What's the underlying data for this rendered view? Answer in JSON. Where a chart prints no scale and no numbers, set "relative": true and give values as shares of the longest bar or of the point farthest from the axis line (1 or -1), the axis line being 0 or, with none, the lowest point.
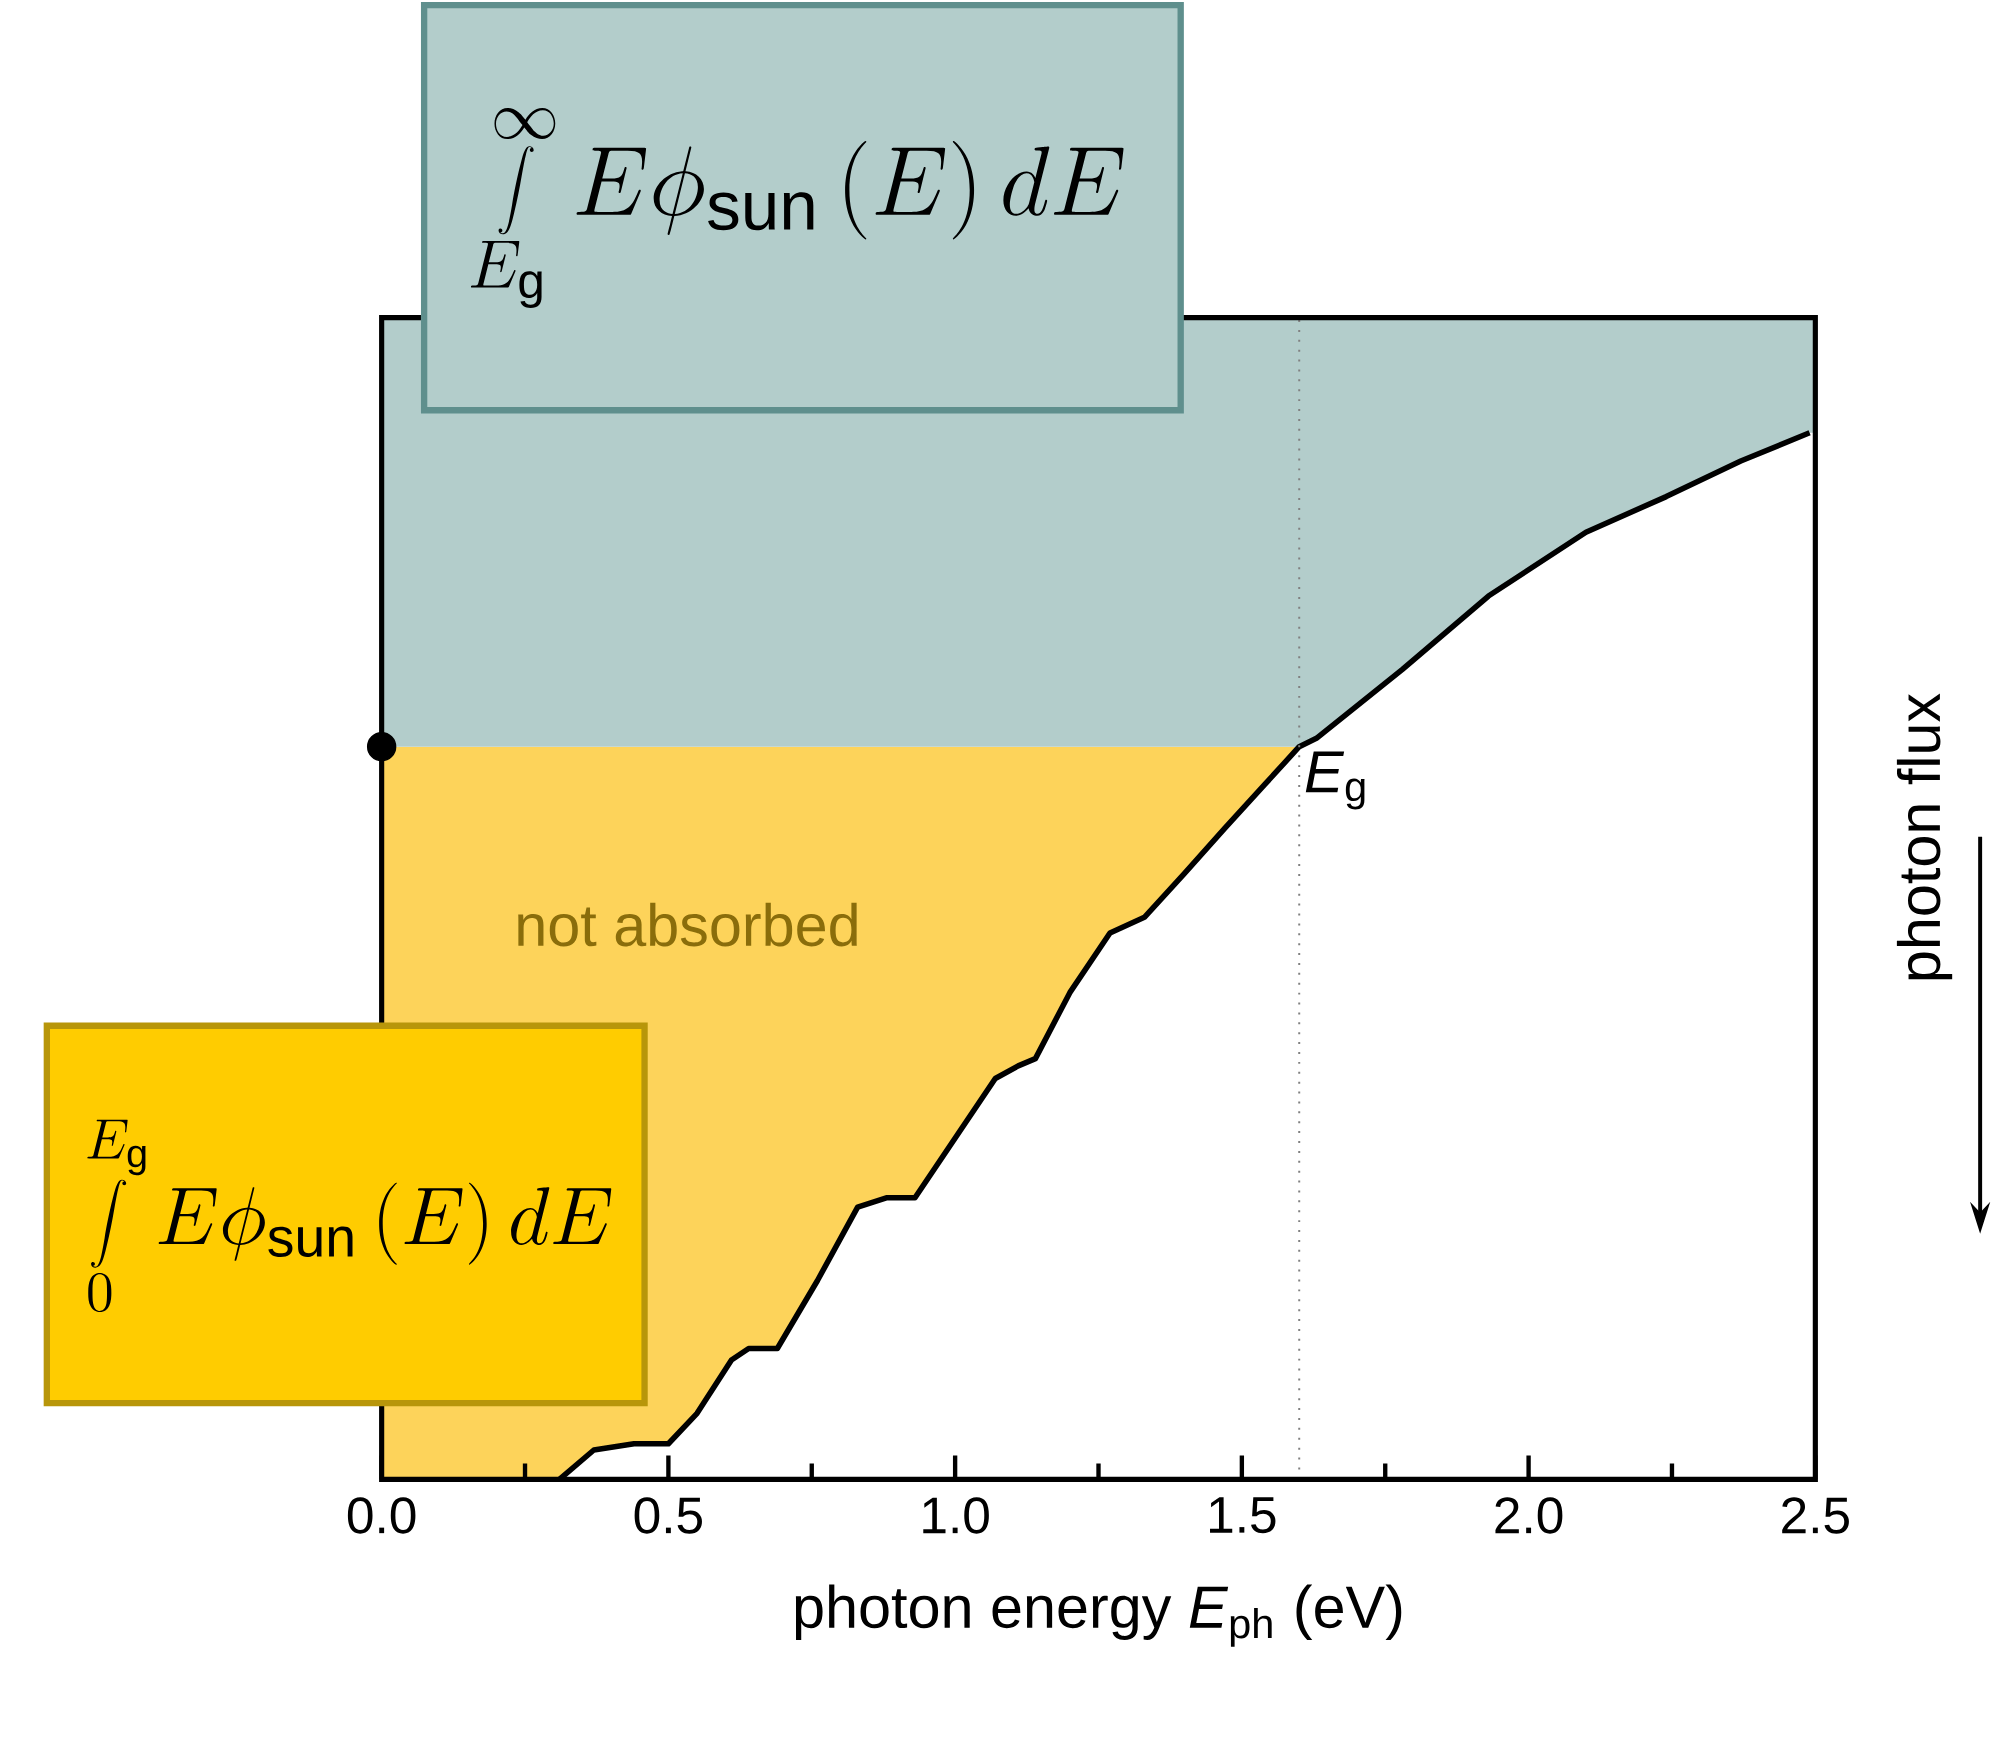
{
  "chart_data": {
    "type": "line",
    "relative": true,
    "tick_labels": "x",
    "xlabel": "photon energy *E*$_{ph}$ (eV)",
    "ylabel": "photon flux",
    "xlim": [
      0,
      2.5
    ],
    "xticks": [
      {
        "value": 0,
        "label": "0.0"
      },
      {
        "value": 0.5,
        "label": "0.5"
      },
      {
        "value": 1,
        "label": "1.0"
      },
      {
        "value": 1.5,
        "label": "1.5"
      },
      {
        "value": 2,
        "label": "2.0"
      },
      {
        "value": 2.5,
        "label": "2.5"
      }
    ],
    "series": [
      {
        "color": "#000000",
        "x": [
          0.31,
          0.37,
          0.44,
          0.5,
          0.55,
          0.61,
          0.64,
          0.69,
          0.76,
          0.83,
          0.88,
          0.93,
          1.0,
          1.07,
          1.11,
          1.14,
          1.2,
          1.27,
          1.33,
          1.4,
          1.47,
          1.54,
          1.6,
          1.63,
          1.78,
          1.93,
          2.1,
          2.24,
          2.37,
          2.49
        ],
        "values": [
          0,
          0.028,
          0.034,
          0.034,
          0.063,
          0.114,
          0.125,
          0.125,
          0.19,
          0.26,
          0.269,
          0.269,
          0.326,
          0.383,
          0.395,
          0.402,
          0.465,
          0.522,
          0.537,
          0.579,
          0.622,
          0.664,
          0.7,
          0.708,
          0.774,
          0.844,
          0.905,
          0.939,
          0.973,
          1.0
        ]
      },
      {
        "type": "scatter",
        "marker": "circle",
        "color": "#000000",
        "x": [
          0
        ],
        "values": [
          0.7
        ]
      }
    ],
    "ref_lines": [
      {
        "axis": "x",
        "value": 1.6,
        "label": "*E*$_{g}$",
        "line_style": "dotted",
        "color": "#808080"
      }
    ],
    "bands": [
      {
        "axis": "y",
        "from": 0,
        "to": 0.7,
        "color": "#fdd35a"
      },
      {
        "axis": "y",
        "from": 0.7,
        "to": 1.11,
        "color": "#b3cdcb"
      }
    ],
    "annotations": [
      "not absorbed",
      "\\int\\limits_{E_\\mathrm{g}}^{\\infty} E\\phi_\\mathrm{sun}\\left(E\\right)dE",
      "\\int\\limits_{0}^{E_\\mathrm{g}} E\\phi_\\mathrm{sun}\\left(E\\right)dE"
    ]
  }
}
